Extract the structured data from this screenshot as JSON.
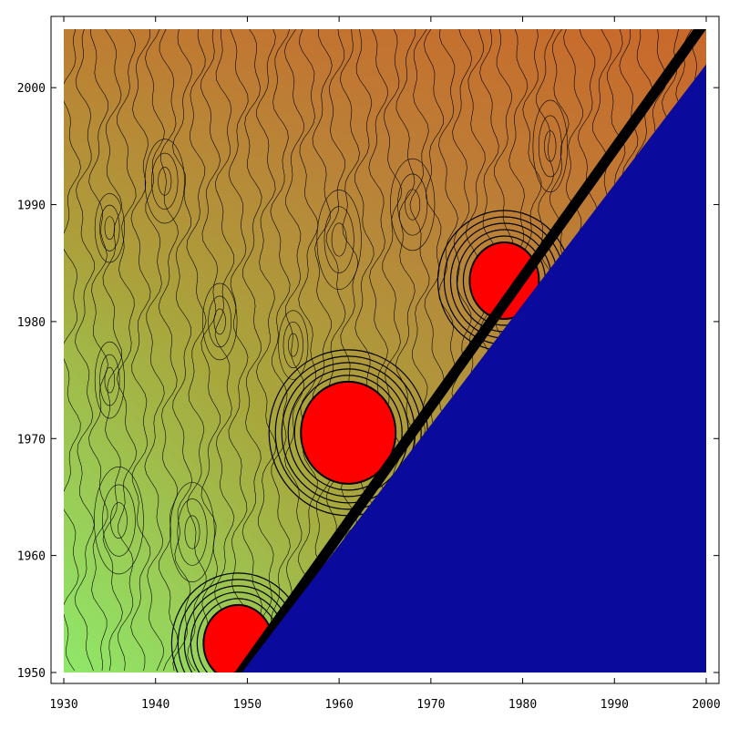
{
  "chart_data": {
    "type": "heatmap",
    "subtype": "filled-contour",
    "title": "",
    "xlabel": "",
    "ylabel": "",
    "xlim": [
      1930,
      2000
    ],
    "ylim": [
      1950,
      2005
    ],
    "x_ticks": [
      1930,
      1940,
      1950,
      1960,
      1970,
      1980,
      1990,
      2000
    ],
    "y_ticks": [
      1950,
      1960,
      1970,
      1980,
      1990,
      2000
    ],
    "x_tick_labels": [
      "1930",
      "1940",
      "1950",
      "1960",
      "1970",
      "1980",
      "1990",
      "2000"
    ],
    "y_tick_labels": [
      "1950",
      "1960",
      "1970",
      "1980",
      "1990",
      "2000"
    ],
    "grid": false,
    "masked_region": {
      "description": "lower-right triangle below the diagonal y = x",
      "color": "#0a0a9c"
    },
    "diagonal_band_color": "#000000",
    "colormap": [
      "#8fe86a",
      "#a8a73c",
      "#b8853a",
      "#c9682a"
    ],
    "high_value_color": "#ff0000",
    "hotspots": [
      {
        "x": 1961,
        "y": 1970.5
      },
      {
        "x": 1978,
        "y": 1983.5
      },
      {
        "x": 1949,
        "y": 1952.5
      }
    ]
  }
}
